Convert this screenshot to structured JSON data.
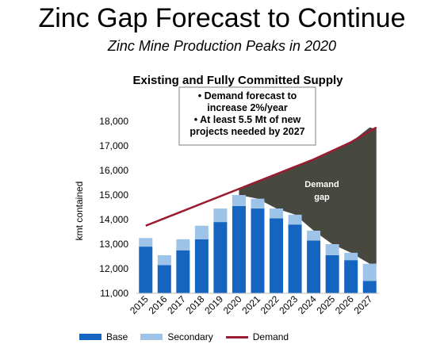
{
  "header": {
    "title": "Zinc Gap Forecast to Continue",
    "subtitle": "Zinc Mine Production Peaks in 2020"
  },
  "colors": {
    "base": "#1565c0",
    "secondary": "#9ec3e8",
    "demand": "#9b1b30",
    "gap": "#474840"
  },
  "chart_data": {
    "type": "bar",
    "title": "Existing and Fully Committed Supply",
    "ylabel": "kmt contained",
    "xlabel": "",
    "ylim": [
      11000,
      18000
    ],
    "yticks": [
      "11,000",
      "12,000",
      "13,000",
      "14,000",
      "15,000",
      "16,000",
      "17,000",
      "18,000"
    ],
    "categories": [
      "2015",
      "2016",
      "2017",
      "2018",
      "2019",
      "2020",
      "2021",
      "2022",
      "2023",
      "2024",
      "2025",
      "2026",
      "2027"
    ],
    "series": [
      {
        "name": "Base",
        "values": [
          12900,
          12150,
          12750,
          13200,
          13900,
          14550,
          14450,
          14050,
          13800,
          13150,
          12550,
          12350,
          11500
        ]
      },
      {
        "name": "Secondary",
        "values": [
          350,
          400,
          450,
          550,
          550,
          450,
          400,
          400,
          400,
          400,
          450,
          300,
          700
        ]
      }
    ],
    "demand": {
      "name": "Demand",
      "values": [
        13750,
        14050,
        14350,
        14650,
        14950,
        15250,
        15550,
        15850,
        16150,
        16450,
        16800,
        17150,
        17750
      ]
    },
    "annotation": {
      "lines": [
        "• Demand forecast to",
        "increase 2%/year",
        "• At least 5.5 Mt of new",
        "projects needed by 2027"
      ]
    },
    "gap_label": [
      "Demand",
      "gap"
    ],
    "legend": "bottom"
  }
}
